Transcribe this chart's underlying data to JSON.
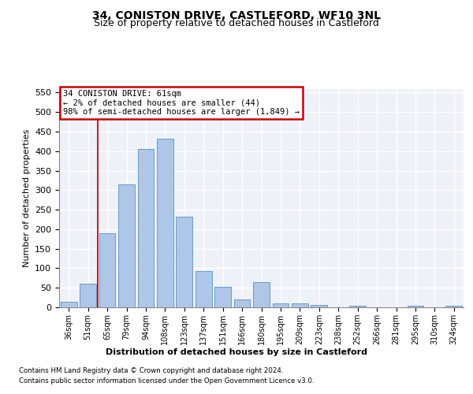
{
  "title": "34, CONISTON DRIVE, CASTLEFORD, WF10 3NL",
  "subtitle": "Size of property relative to detached houses in Castleford",
  "xlabel": "Distribution of detached houses by size in Castleford",
  "ylabel": "Number of detached properties",
  "footnote1": "Contains HM Land Registry data © Crown copyright and database right 2024.",
  "footnote2": "Contains public sector information licensed under the Open Government Licence v3.0.",
  "annotation_line1": "34 CONISTON DRIVE: 61sqm",
  "annotation_line2": "← 2% of detached houses are smaller (44)",
  "annotation_line3": "98% of semi-detached houses are larger (1,849) →",
  "bar_labels": [
    "36sqm",
    "51sqm",
    "65sqm",
    "79sqm",
    "94sqm",
    "108sqm",
    "123sqm",
    "137sqm",
    "151sqm",
    "166sqm",
    "180sqm",
    "195sqm",
    "209sqm",
    "223sqm",
    "238sqm",
    "252sqm",
    "266sqm",
    "281sqm",
    "295sqm",
    "310sqm",
    "324sqm"
  ],
  "bar_heights": [
    14,
    61,
    190,
    315,
    406,
    432,
    233,
    93,
    52,
    20,
    65,
    11,
    10,
    6,
    0,
    5,
    0,
    0,
    4,
    0,
    5
  ],
  "bar_color": "#aec6e8",
  "bar_edge_color": "#5a8fc2",
  "vline_x": 1.5,
  "vline_color": "#cc0000",
  "annotation_box_color": "#cc0000",
  "ylim": [
    0,
    560
  ],
  "yticks": [
    0,
    50,
    100,
    150,
    200,
    250,
    300,
    350,
    400,
    450,
    500,
    550
  ],
  "bg_color": "#eef2f8",
  "grid_color": "#ffffff",
  "title_fontsize": 10,
  "subtitle_fontsize": 9
}
